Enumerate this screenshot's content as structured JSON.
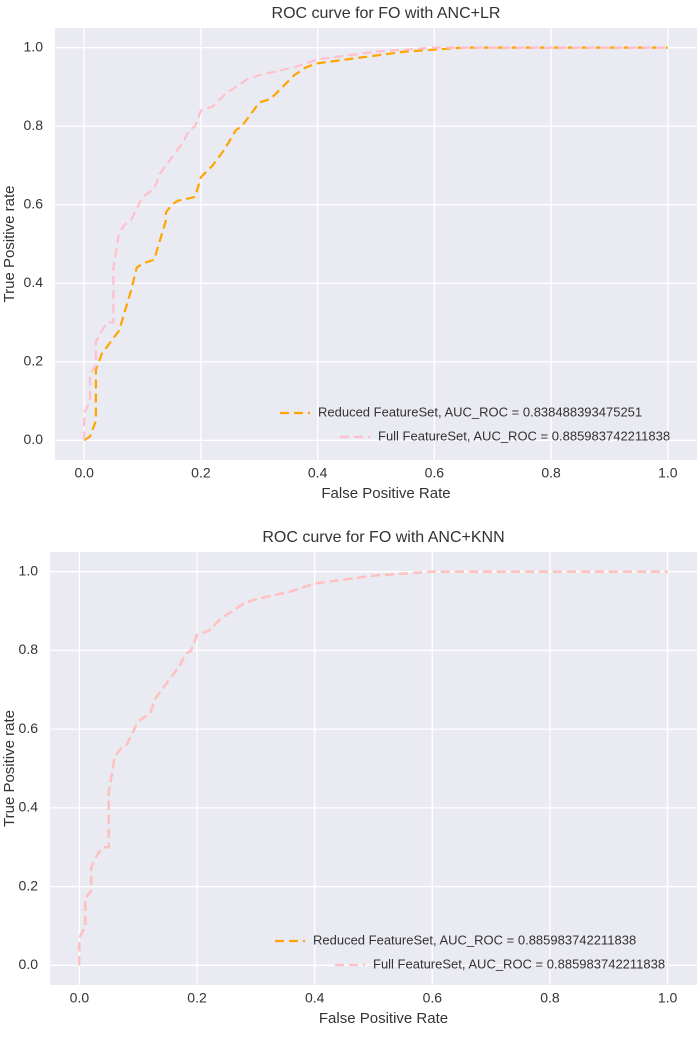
{
  "chart_data": [
    {
      "type": "line",
      "title": "ROC curve for FO with ANC+LR",
      "x_label": "False Positive Rate",
      "y_label": "True Positive rate",
      "xlim": [
        -0.05,
        1.05
      ],
      "ylim": [
        -0.05,
        1.05
      ],
      "xticks": [
        {
          "value": 0,
          "label": "0.0"
        },
        0.2,
        0.4,
        0.6,
        0.8,
        {
          "value": 1,
          "label": "1.0"
        }
      ],
      "yticks": [
        {
          "value": 0,
          "label": "0.0"
        },
        0.2,
        0.4,
        0.6,
        0.8,
        {
          "value": 1,
          "label": "1.0"
        }
      ],
      "grid": true,
      "legend": "lower right",
      "series": [
        {
          "name": "Reduced FeatureSet, AUC_ROC = 0.838488393475251",
          "color": "#ffa500",
          "x": [
            0,
            0.01,
            0.02,
            0.02,
            0.03,
            0.04,
            0.05,
            0.06,
            0.07,
            0.08,
            0.09,
            0.1,
            0.12,
            0.14,
            0.14,
            0.15,
            0.16,
            0.19,
            0.2,
            0.22,
            0.24,
            0.26,
            0.27,
            0.3,
            0.32,
            0.34,
            0.36,
            0.38,
            0.4,
            0.45,
            0.5,
            0.55,
            0.6,
            0.65,
            1.0
          ],
          "values": [
            0,
            0.01,
            0.05,
            0.18,
            0.22,
            0.24,
            0.26,
            0.28,
            0.33,
            0.38,
            0.44,
            0.45,
            0.46,
            0.56,
            0.58,
            0.6,
            0.61,
            0.62,
            0.67,
            0.7,
            0.74,
            0.79,
            0.8,
            0.86,
            0.87,
            0.9,
            0.93,
            0.95,
            0.96,
            0.97,
            0.98,
            0.99,
            0.995,
            1.0,
            1.0
          ]
        },
        {
          "name": "Full FeatureSet, AUC_ROC = 0.885983742211838",
          "color": "#ffc0cb",
          "x": [
            0,
            0,
            0.01,
            0.01,
            0.02,
            0.02,
            0.03,
            0.04,
            0.05,
            0.05,
            0.06,
            0.07,
            0.08,
            0.09,
            0.1,
            0.12,
            0.13,
            0.14,
            0.15,
            0.17,
            0.18,
            0.19,
            0.2,
            0.22,
            0.24,
            0.26,
            0.28,
            0.3,
            0.33,
            0.36,
            0.4,
            0.45,
            0.5,
            0.55,
            0.6,
            0.7,
            0.8,
            1.0
          ],
          "values": [
            0,
            0.07,
            0.1,
            0.17,
            0.19,
            0.25,
            0.28,
            0.3,
            0.3,
            0.44,
            0.53,
            0.55,
            0.56,
            0.59,
            0.62,
            0.64,
            0.68,
            0.7,
            0.72,
            0.76,
            0.79,
            0.8,
            0.84,
            0.85,
            0.88,
            0.9,
            0.92,
            0.93,
            0.94,
            0.95,
            0.97,
            0.98,
            0.99,
            0.995,
            1.0,
            1.0,
            1.0,
            1.0
          ]
        }
      ]
    },
    {
      "type": "line",
      "title": "ROC curve for FO with ANC+KNN",
      "x_label": "False Positive Rate",
      "y_label": "True Positive rate",
      "xlim": [
        -0.05,
        1.05
      ],
      "ylim": [
        -0.05,
        1.05
      ],
      "xticks": [
        {
          "value": 0,
          "label": "0.0"
        },
        0.2,
        0.4,
        0.6,
        0.8,
        {
          "value": 1,
          "label": "1.0"
        }
      ],
      "yticks": [
        {
          "value": 0,
          "label": "0.0"
        },
        0.2,
        0.4,
        0.6,
        0.8,
        {
          "value": 1,
          "label": "1.0"
        }
      ],
      "grid": true,
      "legend": "lower right",
      "series": [
        {
          "name": "Reduced FeatureSet, AUC_ROC = 0.885983742211838",
          "color": "#ffa500",
          "x": [
            0,
            0,
            0.01,
            0.01,
            0.02,
            0.02,
            0.03,
            0.04,
            0.05,
            0.05,
            0.06,
            0.07,
            0.08,
            0.09,
            0.1,
            0.12,
            0.13,
            0.14,
            0.15,
            0.17,
            0.18,
            0.19,
            0.2,
            0.22,
            0.24,
            0.26,
            0.28,
            0.3,
            0.33,
            0.36,
            0.4,
            0.45,
            0.5,
            0.55,
            0.6,
            0.7,
            0.8,
            1.0
          ],
          "values": [
            0,
            0.07,
            0.1,
            0.17,
            0.19,
            0.25,
            0.28,
            0.3,
            0.3,
            0.44,
            0.53,
            0.55,
            0.56,
            0.59,
            0.62,
            0.64,
            0.68,
            0.7,
            0.72,
            0.76,
            0.79,
            0.8,
            0.84,
            0.85,
            0.88,
            0.9,
            0.92,
            0.93,
            0.94,
            0.95,
            0.97,
            0.98,
            0.99,
            0.995,
            1.0,
            1.0,
            1.0,
            1.0
          ]
        },
        {
          "name": "Full FeatureSet, AUC_ROC = 0.885983742211838",
          "color": "#ffc0cb",
          "x": [
            0,
            0,
            0.01,
            0.01,
            0.02,
            0.02,
            0.03,
            0.04,
            0.05,
            0.05,
            0.06,
            0.07,
            0.08,
            0.09,
            0.1,
            0.12,
            0.13,
            0.14,
            0.15,
            0.17,
            0.18,
            0.19,
            0.2,
            0.22,
            0.24,
            0.26,
            0.28,
            0.3,
            0.33,
            0.36,
            0.4,
            0.45,
            0.5,
            0.55,
            0.6,
            0.7,
            0.8,
            1.0
          ],
          "values": [
            0,
            0.07,
            0.1,
            0.17,
            0.19,
            0.25,
            0.28,
            0.3,
            0.3,
            0.44,
            0.53,
            0.55,
            0.56,
            0.59,
            0.62,
            0.64,
            0.68,
            0.7,
            0.72,
            0.76,
            0.79,
            0.8,
            0.84,
            0.85,
            0.88,
            0.9,
            0.92,
            0.93,
            0.94,
            0.95,
            0.97,
            0.98,
            0.99,
            0.995,
            1.0,
            1.0,
            1.0,
            1.0
          ]
        }
      ]
    }
  ]
}
